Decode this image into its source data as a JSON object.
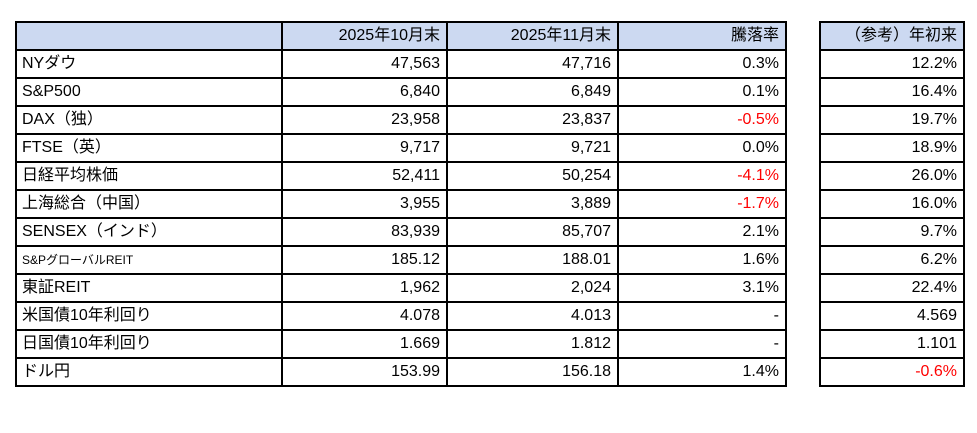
{
  "table": {
    "headers": {
      "corner": "",
      "oct": "2025年10月末",
      "nov": "2025年11月末",
      "change": "騰落率"
    },
    "ref_header": "（参考）年初来",
    "rows": [
      {
        "label": "NYダウ",
        "oct": "47,563",
        "nov": "47,716",
        "change": "0.3%",
        "ytd": "12.2%"
      },
      {
        "label": "S&P500",
        "oct": "6,840",
        "nov": "6,849",
        "change": "0.1%",
        "ytd": "16.4%"
      },
      {
        "label": "DAX（独）",
        "oct": "23,958",
        "nov": "23,837",
        "change": "-0.5%",
        "ytd": "19.7%"
      },
      {
        "label": "FTSE（英）",
        "oct": "9,717",
        "nov": "9,721",
        "change": "0.0%",
        "ytd": "18.9%"
      },
      {
        "label": "日経平均株価",
        "oct": "52,411",
        "nov": "50,254",
        "change": "-4.1%",
        "ytd": "26.0%"
      },
      {
        "label": "上海総合（中国）",
        "oct": "3,955",
        "nov": "3,889",
        "change": "-1.7%",
        "ytd": "16.0%"
      },
      {
        "label": "SENSEX（インド）",
        "oct": "83,939",
        "nov": "85,707",
        "change": "2.1%",
        "ytd": "9.7%"
      },
      {
        "label": "S&PグローバルREIT",
        "oct": "185.12",
        "nov": "188.01",
        "change": "1.6%",
        "ytd": "6.2%"
      },
      {
        "label": "東証REIT",
        "oct": "1,962",
        "nov": "2,024",
        "change": "3.1%",
        "ytd": "22.4%"
      },
      {
        "label": "米国債10年利回り",
        "oct": "4.078",
        "nov": "4.013",
        "change": "-",
        "ytd": "4.569"
      },
      {
        "label": "日国債10年利回り",
        "oct": "1.669",
        "nov": "1.812",
        "change": "-",
        "ytd": "1.101"
      },
      {
        "label": "ドル円",
        "oct": "153.99",
        "nov": "156.18",
        "change": "1.4%",
        "ytd": "-0.6%"
      }
    ]
  },
  "colors": {
    "header_bg": "#ccd9f1",
    "negative": "#ff0000",
    "border": "#000000"
  }
}
